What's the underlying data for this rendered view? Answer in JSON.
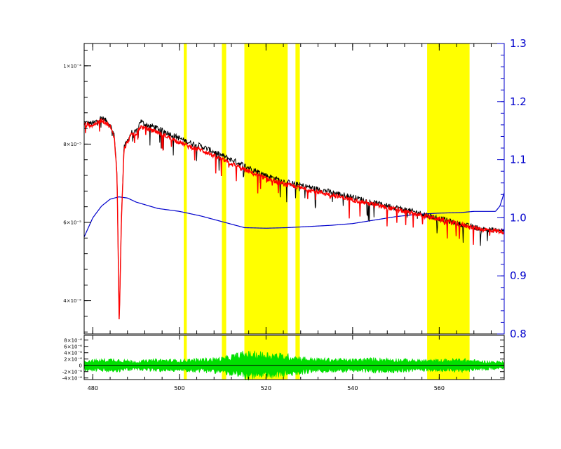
{
  "chart_data": [
    {
      "type": "line",
      "panel": "main spectrum",
      "xlim": [
        478,
        575
      ],
      "ylim_left": [
        3.15e-05,
        0.0001057
      ],
      "y_left_ticks": [
        {
          "value": 4e-05,
          "label": "4×10⁻⁵"
        },
        {
          "value": 6e-05,
          "label": "6×10⁻⁵"
        },
        {
          "value": 8e-05,
          "label": "8×10⁻⁵"
        },
        {
          "value": 0.0001,
          "label": "1×10⁻⁴"
        }
      ],
      "ylim_right": [
        0.8,
        1.3
      ],
      "y_right_ticks": [
        {
          "value": 0.8,
          "label": "0.8"
        },
        {
          "value": 0.9,
          "label": "0.9"
        },
        {
          "value": 1.0,
          "label": "1.0"
        },
        {
          "value": 1.1,
          "label": "1.1"
        },
        {
          "value": 1.2,
          "label": "1.2"
        },
        {
          "value": 1.3,
          "label": "1.3"
        }
      ],
      "masked_regions": [
        [
          501.0,
          501.7
        ],
        [
          509.8,
          510.8
        ],
        [
          515.0,
          525.0
        ],
        [
          526.8,
          527.8
        ],
        [
          557.2,
          567.0
        ]
      ],
      "series": [
        {
          "role": "observed spectrum",
          "color": "#000000",
          "axis": "left",
          "x": [
            478,
            480,
            482,
            483,
            484,
            485,
            485.6,
            486.1,
            486.6,
            487.2,
            488,
            489,
            490,
            491,
            492,
            494,
            496,
            498,
            500,
            502,
            505,
            508,
            510,
            513,
            516,
            520,
            524,
            528,
            532,
            536,
            540,
            545,
            550,
            555,
            560,
            565,
            570,
            575
          ],
          "y": [
            8.55e-05,
            8.52e-05,
            8.68e-05,
            8.6e-05,
            8.5e-05,
            8.2e-05,
            7.2e-05,
            3.4e-05,
            6.1e-05,
            7.9e-05,
            8.1e-05,
            8.3e-05,
            8.3e-05,
            8.6e-05,
            8.5e-05,
            8.45e-05,
            8.35e-05,
            8.25e-05,
            8.15e-05,
            8.05e-05,
            7.95e-05,
            7.8e-05,
            7.7e-05,
            7.55e-05,
            7.4e-05,
            7.2e-05,
            7.05e-05,
            6.95e-05,
            6.85e-05,
            6.75e-05,
            6.65e-05,
            6.5e-05,
            6.38e-05,
            6.25e-05,
            6.1e-05,
            5.95e-05,
            5.83e-05,
            5.78e-05
          ]
        },
        {
          "role": "model fit",
          "color": "#ff0000",
          "axis": "left",
          "x": [
            478,
            480,
            482,
            483,
            484,
            485,
            485.6,
            486.1,
            486.6,
            487.2,
            488,
            489,
            490,
            491,
            492,
            494,
            496,
            498,
            500,
            502,
            505,
            508,
            510,
            513,
            516,
            520,
            524,
            528,
            532,
            536,
            540,
            545,
            550,
            555,
            560,
            565,
            570,
            575
          ],
          "y": [
            8.5e-05,
            8.48e-05,
            8.62e-05,
            8.55e-05,
            8.45e-05,
            8.15e-05,
            7.15e-05,
            3.4e-05,
            6.05e-05,
            7.85e-05,
            8.05e-05,
            8.25e-05,
            8.25e-05,
            8.45e-05,
            8.4e-05,
            8.35e-05,
            8.25e-05,
            8.15e-05,
            8.05e-05,
            7.95e-05,
            7.85e-05,
            7.7e-05,
            7.6e-05,
            7.45e-05,
            7.3e-05,
            7.12e-05,
            6.98e-05,
            6.88e-05,
            6.78e-05,
            6.68e-05,
            6.58e-05,
            6.45e-05,
            6.33e-05,
            6.2e-05,
            6.08e-05,
            5.94e-05,
            5.82e-05,
            5.76e-05
          ]
        },
        {
          "role": "multiplicative polynomial",
          "color": "#0000cc",
          "axis": "right",
          "x": [
            478,
            480,
            482,
            484,
            486,
            488,
            490,
            495,
            500,
            505,
            510,
            515,
            520,
            525,
            530,
            535,
            540,
            545,
            550,
            555,
            560,
            565,
            568,
            571,
            573,
            574,
            575
          ],
          "y": [
            0.967,
            1.0,
            1.02,
            1.032,
            1.036,
            1.034,
            1.027,
            1.016,
            1.011,
            1.003,
            0.993,
            0.983,
            0.982,
            0.983,
            0.985,
            0.987,
            0.99,
            0.996,
            1.002,
            1.006,
            1.008,
            1.009,
            1.011,
            1.011,
            1.011,
            1.02,
            1.043
          ]
        }
      ]
    },
    {
      "type": "line",
      "panel": "residuals",
      "xlim": [
        478,
        575
      ],
      "ylim": [
        -4.5e-06,
        9.5e-06
      ],
      "x_ticks": [
        {
          "value": 480,
          "label": "480"
        },
        {
          "value": 500,
          "label": "500"
        },
        {
          "value": 520,
          "label": "520"
        },
        {
          "value": 540,
          "label": "540"
        },
        {
          "value": 560,
          "label": "560"
        }
      ],
      "y_ticks": [
        {
          "value": 8e-06,
          "label": "8×10⁻⁶"
        },
        {
          "value": 6e-06,
          "label": "6×10⁻⁶"
        },
        {
          "value": 4e-06,
          "label": "4×10⁻⁶"
        },
        {
          "value": 2e-06,
          "label": "2×10⁻⁶"
        },
        {
          "value": 0,
          "label": "0"
        },
        {
          "value": -2e-06,
          "label": "-2×10⁻⁶"
        },
        {
          "value": -4e-06,
          "label": "-4×10⁻⁶"
        }
      ],
      "series": [
        {
          "role": "residuals",
          "color": "#00e000",
          "x": [
            478,
            485,
            490,
            495,
            500,
            505,
            510,
            515,
            520,
            525,
            530,
            535,
            540,
            545,
            550,
            555,
            560,
            565,
            570,
            575
          ],
          "y_amplitude": [
            1.8e-06,
            2.4e-06,
            1.6e-06,
            2.2e-06,
            2e-06,
            2.4e-06,
            2.8e-06,
            4.8e-06,
            4.5e-06,
            3.8e-06,
            2.6e-06,
            2.4e-06,
            2.2e-06,
            2.6e-06,
            2.4e-06,
            2e-06,
            2e-06,
            2.4e-06,
            1.6e-06,
            1.4e-06
          ]
        },
        {
          "role": "zero line",
          "color": "#000000",
          "x": [
            478,
            575
          ],
          "y": [
            0,
            0
          ]
        }
      ]
    }
  ],
  "colors": {
    "masked_region": "#ffff00",
    "right_axis": "#0000cc",
    "residual": "#00e000",
    "background": "#ffffff"
  }
}
